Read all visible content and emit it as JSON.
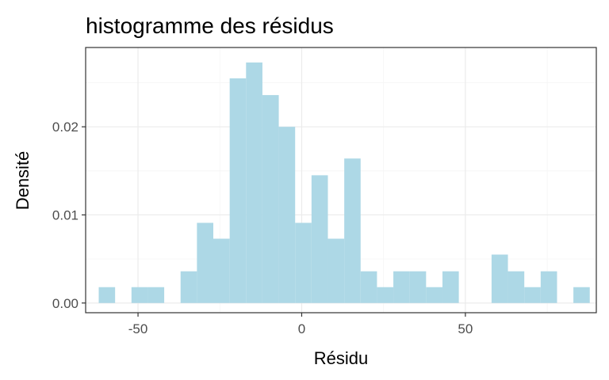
{
  "chart_data": {
    "type": "bar",
    "title": "histogramme des résidus",
    "xlabel": "Résidu",
    "ylabel": "Densité",
    "xlim": [
      -66,
      90
    ],
    "ylim": [
      -0.0011,
      0.029
    ],
    "x_ticks": [
      -50,
      0,
      50
    ],
    "x_tick_labels": [
      "-50",
      "0",
      "50"
    ],
    "y_ticks": [
      0.0,
      0.01,
      0.02
    ],
    "y_tick_labels": [
      "0.00",
      "0.01",
      "0.02"
    ],
    "bin_width": 5,
    "bins": [
      {
        "x0": -62,
        "x1": -57,
        "density": 0.0018
      },
      {
        "x0": -57,
        "x1": -52,
        "density": 0.0
      },
      {
        "x0": -52,
        "x1": -47,
        "density": 0.0018
      },
      {
        "x0": -47,
        "x1": -42,
        "density": 0.0018
      },
      {
        "x0": -42,
        "x1": -37,
        "density": 0.0
      },
      {
        "x0": -37,
        "x1": -32,
        "density": 0.0036
      },
      {
        "x0": -32,
        "x1": -27,
        "density": 0.0091
      },
      {
        "x0": -27,
        "x1": -22,
        "density": 0.0073
      },
      {
        "x0": -22,
        "x1": -17,
        "density": 0.0255
      },
      {
        "x0": -17,
        "x1": -12,
        "density": 0.0273
      },
      {
        "x0": -12,
        "x1": -7,
        "density": 0.0236
      },
      {
        "x0": -7,
        "x1": -2,
        "density": 0.02
      },
      {
        "x0": -2,
        "x1": 3,
        "density": 0.0091
      },
      {
        "x0": 3,
        "x1": 8,
        "density": 0.0145
      },
      {
        "x0": 8,
        "x1": 13,
        "density": 0.0073
      },
      {
        "x0": 13,
        "x1": 18,
        "density": 0.0164
      },
      {
        "x0": 18,
        "x1": 23,
        "density": 0.0036
      },
      {
        "x0": 23,
        "x1": 28,
        "density": 0.0018
      },
      {
        "x0": 28,
        "x1": 33,
        "density": 0.0036
      },
      {
        "x0": 33,
        "x1": 38,
        "density": 0.0036
      },
      {
        "x0": 38,
        "x1": 43,
        "density": 0.0018
      },
      {
        "x0": 43,
        "x1": 48,
        "density": 0.0036
      },
      {
        "x0": 48,
        "x1": 53,
        "density": 0.0
      },
      {
        "x0": 53,
        "x1": 58,
        "density": 0.0
      },
      {
        "x0": 58,
        "x1": 63,
        "density": 0.0055
      },
      {
        "x0": 63,
        "x1": 68,
        "density": 0.0036
      },
      {
        "x0": 68,
        "x1": 73,
        "density": 0.0018
      },
      {
        "x0": 73,
        "x1": 78,
        "density": 0.0036
      },
      {
        "x0": 78,
        "x1": 83,
        "density": 0.0
      },
      {
        "x0": 83,
        "x1": 88,
        "density": 0.0018
      }
    ],
    "grid": true,
    "legend": "none",
    "colors": {
      "bar": "#add8e6",
      "grid_major": "#ebebeb",
      "grid_minor": "#f5f5f5",
      "panel_border": "#333333",
      "tick_text": "#4d4d4d"
    }
  }
}
